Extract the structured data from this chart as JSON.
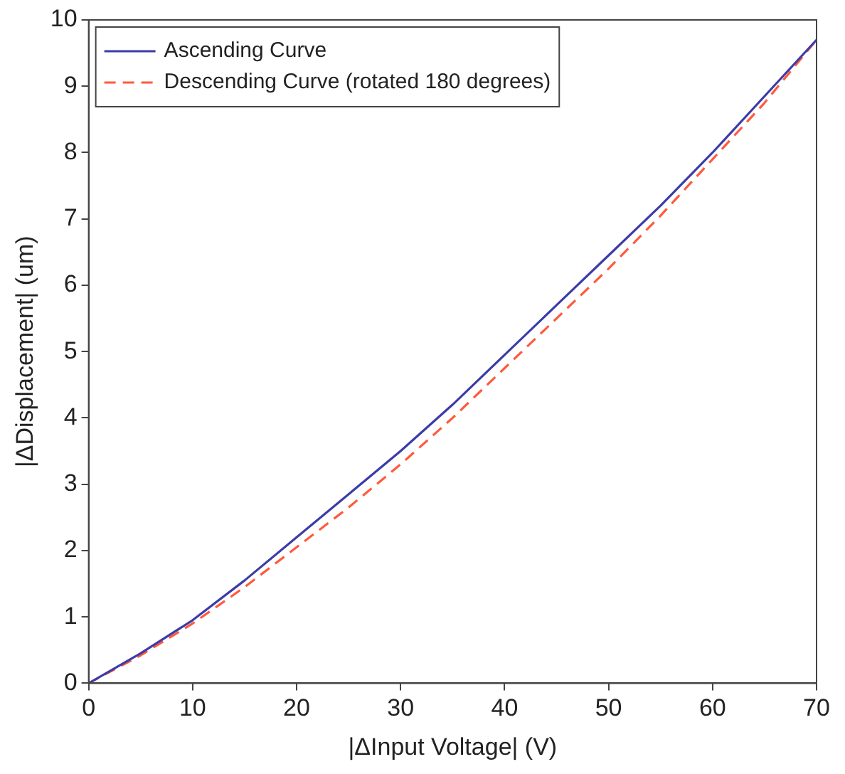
{
  "chart_data": {
    "type": "line",
    "xlabel": "|ΔInput Voltage| (V)",
    "ylabel": "|ΔDisplacement| (um)",
    "x": [
      0,
      5,
      10,
      15,
      20,
      25,
      30,
      35,
      40,
      45,
      50,
      55,
      60,
      65,
      70
    ],
    "series": [
      {
        "name": "Ascending Curve",
        "color": "#3c3ca8",
        "line_style": "solid",
        "values": [
          0,
          0.45,
          0.95,
          1.55,
          2.2,
          2.85,
          3.5,
          4.2,
          4.95,
          5.7,
          6.45,
          7.2,
          8.0,
          8.85,
          9.7
        ]
      },
      {
        "name": "Descending Curve (rotated 180 degrees)",
        "color": "#ff5a3c",
        "line_style": "dashed",
        "values": [
          0,
          0.42,
          0.9,
          1.45,
          2.05,
          2.65,
          3.3,
          4.0,
          4.75,
          5.5,
          6.25,
          7.05,
          7.9,
          8.75,
          9.7
        ]
      }
    ],
    "xlim": [
      0,
      70
    ],
    "xticks": [
      0,
      10,
      20,
      30,
      40,
      50,
      60,
      70
    ],
    "ylim": [
      0,
      10
    ],
    "yticks": [
      0,
      1,
      2,
      3,
      4,
      5,
      6,
      7,
      8,
      9,
      10
    ],
    "grid": false,
    "legend": "top left",
    "marker": "none"
  }
}
